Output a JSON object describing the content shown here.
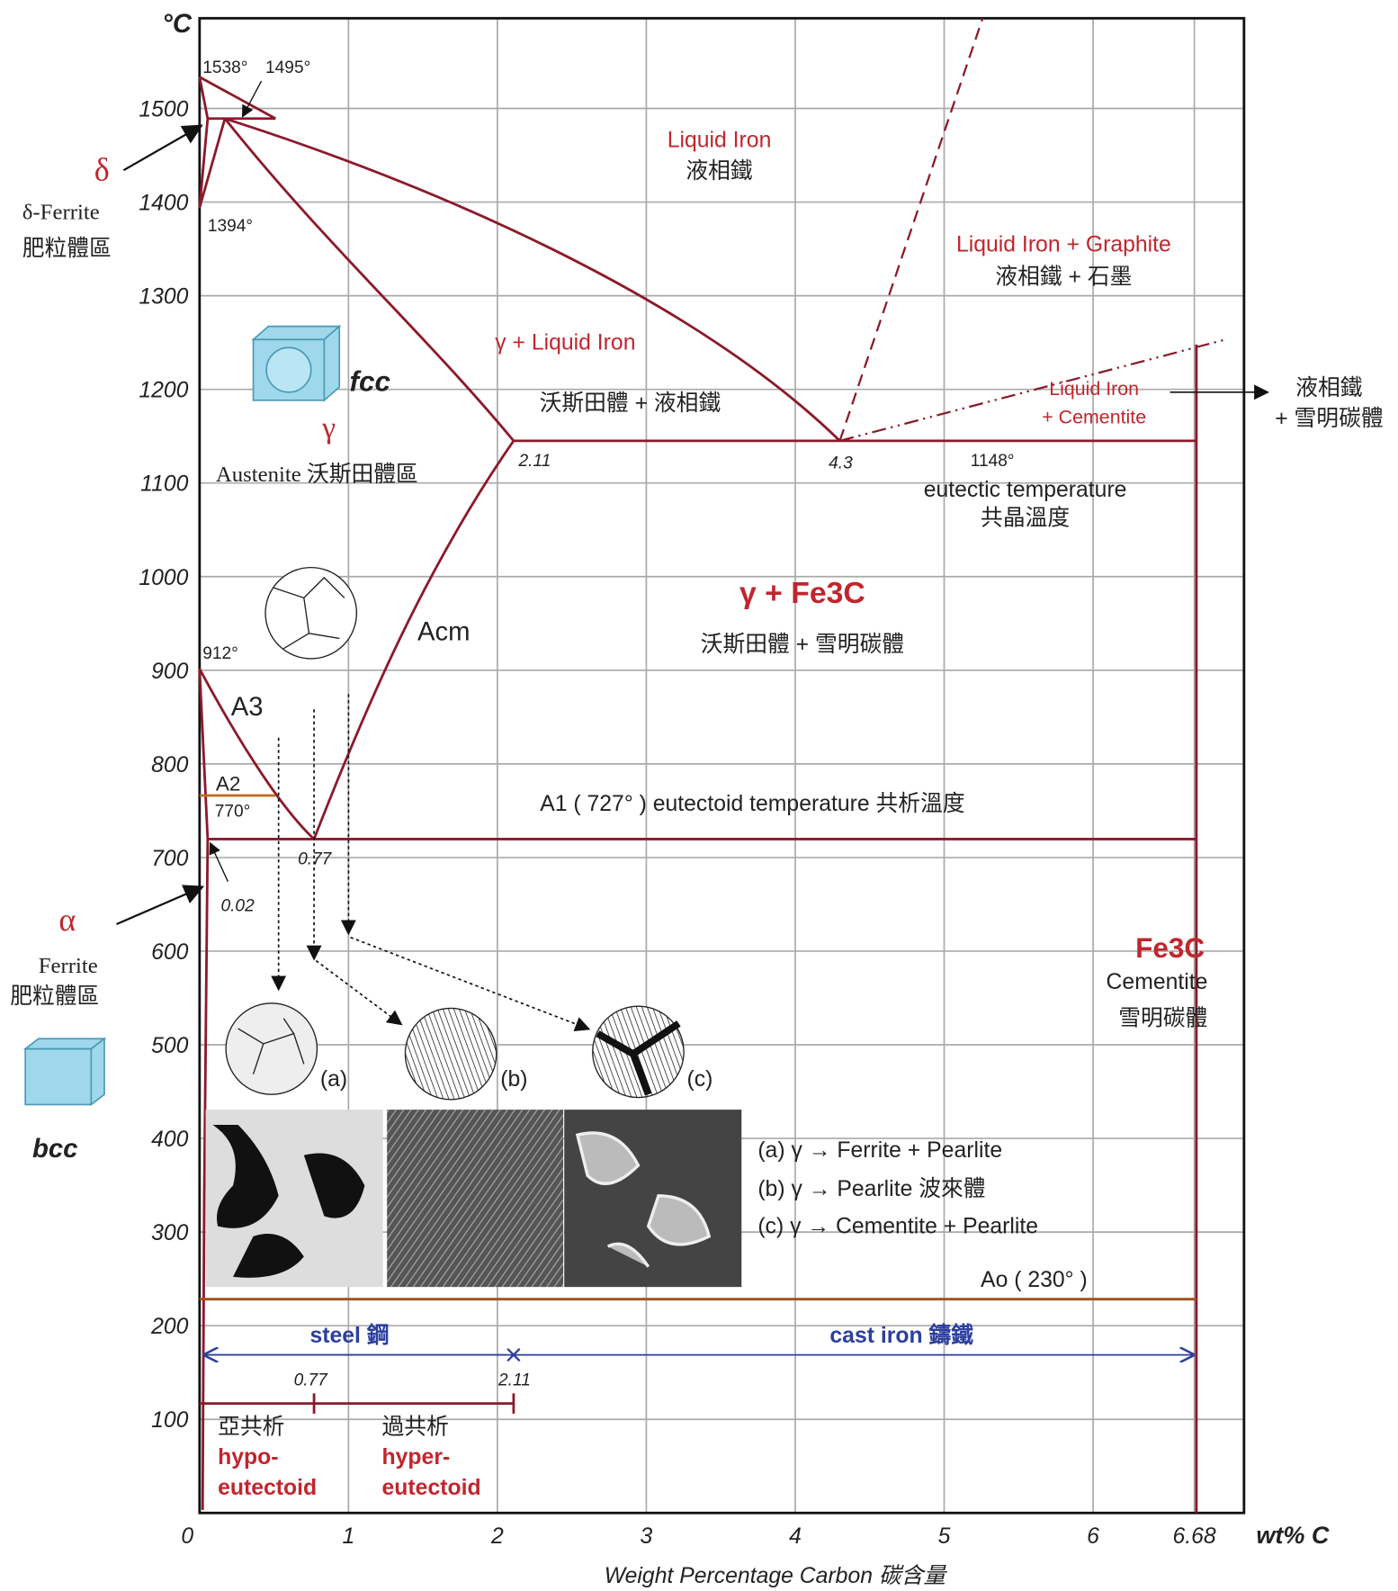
{
  "axes": {
    "y_unit": "°C",
    "x_unit": "wt% C",
    "x_label": "Weight Percentage Carbon 碳含量",
    "xticks": [
      0,
      1,
      2,
      3,
      4,
      5,
      6,
      6.68
    ],
    "yticks": [
      100,
      200,
      300,
      400,
      500,
      600,
      700,
      800,
      900,
      1000,
      1100,
      1200,
      1300,
      1400,
      1500
    ]
  },
  "points": {
    "t1538": "1538°",
    "t1495": "1495°",
    "t1394": "1394°",
    "t912": "912°",
    "t770": "770°",
    "t1148": "1148°",
    "c211": "2.11",
    "c43": "4.3",
    "c077": "0.77",
    "c002": "0.02",
    "bottom_077": "0.77",
    "bottom_211": "2.11"
  },
  "regions": {
    "liquid": [
      "Liquid Iron",
      "液相鐵"
    ],
    "liquid_graphite": [
      "Liquid Iron + Graphite",
      "液相鐵 + 石墨"
    ],
    "gamma_liquid": [
      "γ + Liquid Iron",
      "沃斯田體 + 液相鐵"
    ],
    "liquid_cementite": [
      "Liquid Iron",
      "+ Cementite"
    ],
    "liquid_cementite_right": [
      "液相鐵",
      "+ 雪明碳體"
    ],
    "eutectic": [
      "eutectic temperature",
      "共晶溫度"
    ],
    "gamma_fe3c": [
      "γ + Fe3C",
      "沃斯田體 + 雪明碳體"
    ],
    "austenite": [
      "fcc",
      "γ",
      "Austenite 沃斯田體區"
    ],
    "delta": [
      "δ",
      "δ-Ferrite",
      "肥粒體區"
    ],
    "alpha": [
      "α",
      "Ferrite",
      "肥粒體區",
      "bcc"
    ],
    "cementite": [
      "Fe3C",
      "Cementite",
      "雪明碳體"
    ]
  },
  "lines": {
    "acm": "Acm",
    "a3": "A3",
    "a2": "A2",
    "a1": "A1 ( 727° ) eutectoid temperature 共析溫度",
    "ao": "Ao ( 230° )"
  },
  "micro": {
    "tags": [
      "(a)",
      "(b)",
      "(c)"
    ],
    "legend": [
      "(a)  γ → Ferrite + Pearlite",
      "(b)  γ → Pearlite 波來體",
      "(c)  γ → Cementite + Pearlite"
    ]
  },
  "classes": {
    "steel": "steel 鋼",
    "cast_iron": "cast iron 鑄鐵",
    "hypo": [
      "亞共析",
      "hypo-",
      "eutectoid"
    ],
    "hyper": [
      "過共析",
      "hyper-",
      "eutectoid"
    ]
  }
}
